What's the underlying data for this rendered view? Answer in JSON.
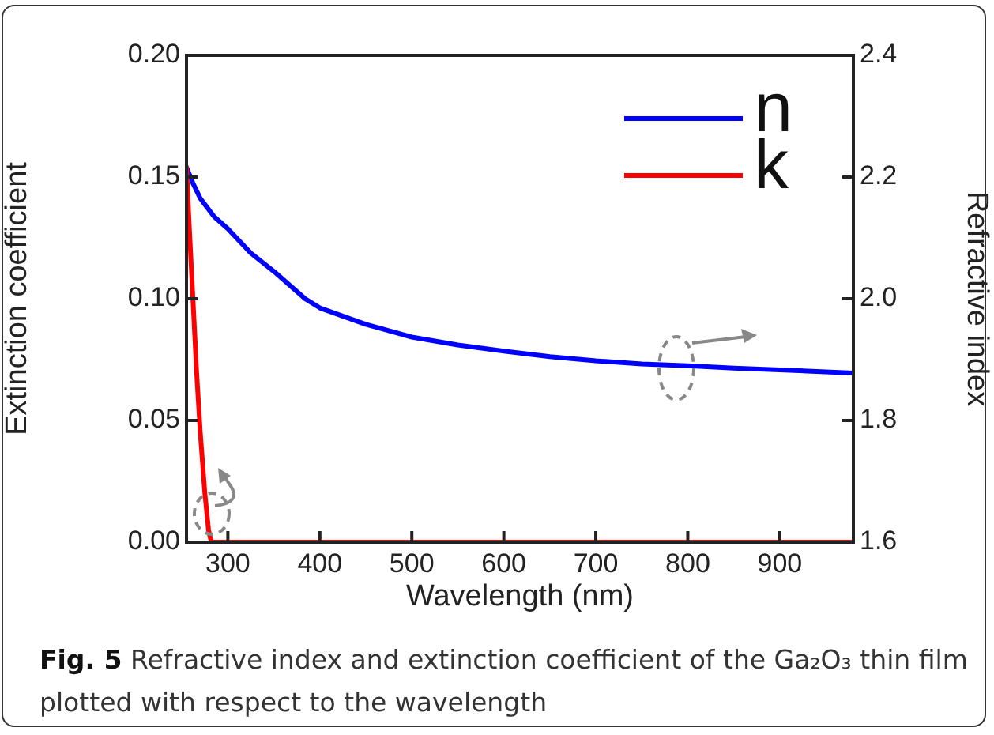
{
  "chart_data": {
    "type": "line",
    "xlabel": "Wavelength (nm)",
    "ylabel": "Extinction coefficient",
    "y2label": "Refractive index",
    "annotations": [
      "Fig. 5",
      "Refractive index and extinction coefficient of the Ga₂O₃ thin film plotted with respect to the wavelength"
    ],
    "xlim": [
      255,
      980
    ],
    "xticks": [
      300,
      400,
      500,
      600,
      700,
      800,
      900
    ],
    "ylim": [
      0,
      0.2
    ],
    "yticks": [
      {
        "value": 0,
        "label": "0.00"
      },
      {
        "value": 0.05,
        "label": "0.05"
      },
      {
        "value": 0.1,
        "label": "0.10"
      },
      {
        "value": 0.15,
        "label": "0.15"
      },
      {
        "value": 0.2,
        "label": "0.20"
      }
    ],
    "y2lim": [
      1.6,
      2.4
    ],
    "y2ticks": [
      1.6,
      1.8,
      {
        "value": 2,
        "label": "2.0"
      },
      2.2,
      2.4
    ],
    "grid": false,
    "legend": "top right",
    "marker": "none",
    "line_style": "solid",
    "series": [
      {
        "name": "n",
        "color": "#0000ff",
        "axis": "y2",
        "x": [
          255,
          262,
          270,
          285,
          300,
          325,
          350,
          384,
          400,
          450,
          500,
          550,
          600,
          650,
          700,
          750,
          800,
          850,
          900,
          950,
          980
        ],
        "values": [
          2.216,
          2.19,
          2.165,
          2.135,
          2.115,
          2.075,
          2.045,
          2.0,
          1.985,
          1.958,
          1.937,
          1.924,
          1.914,
          1.905,
          1.898,
          1.893,
          1.89,
          1.886,
          1.883,
          1.88,
          1.878
        ]
      },
      {
        "name": "k",
        "color": "#ff0000",
        "x": [
          255,
          258,
          262,
          266,
          270,
          275,
          279,
          282,
          980
        ],
        "values": [
          0.154,
          0.13,
          0.1,
          0.07,
          0.045,
          0.02,
          0.005,
          0,
          0
        ]
      }
    ]
  }
}
